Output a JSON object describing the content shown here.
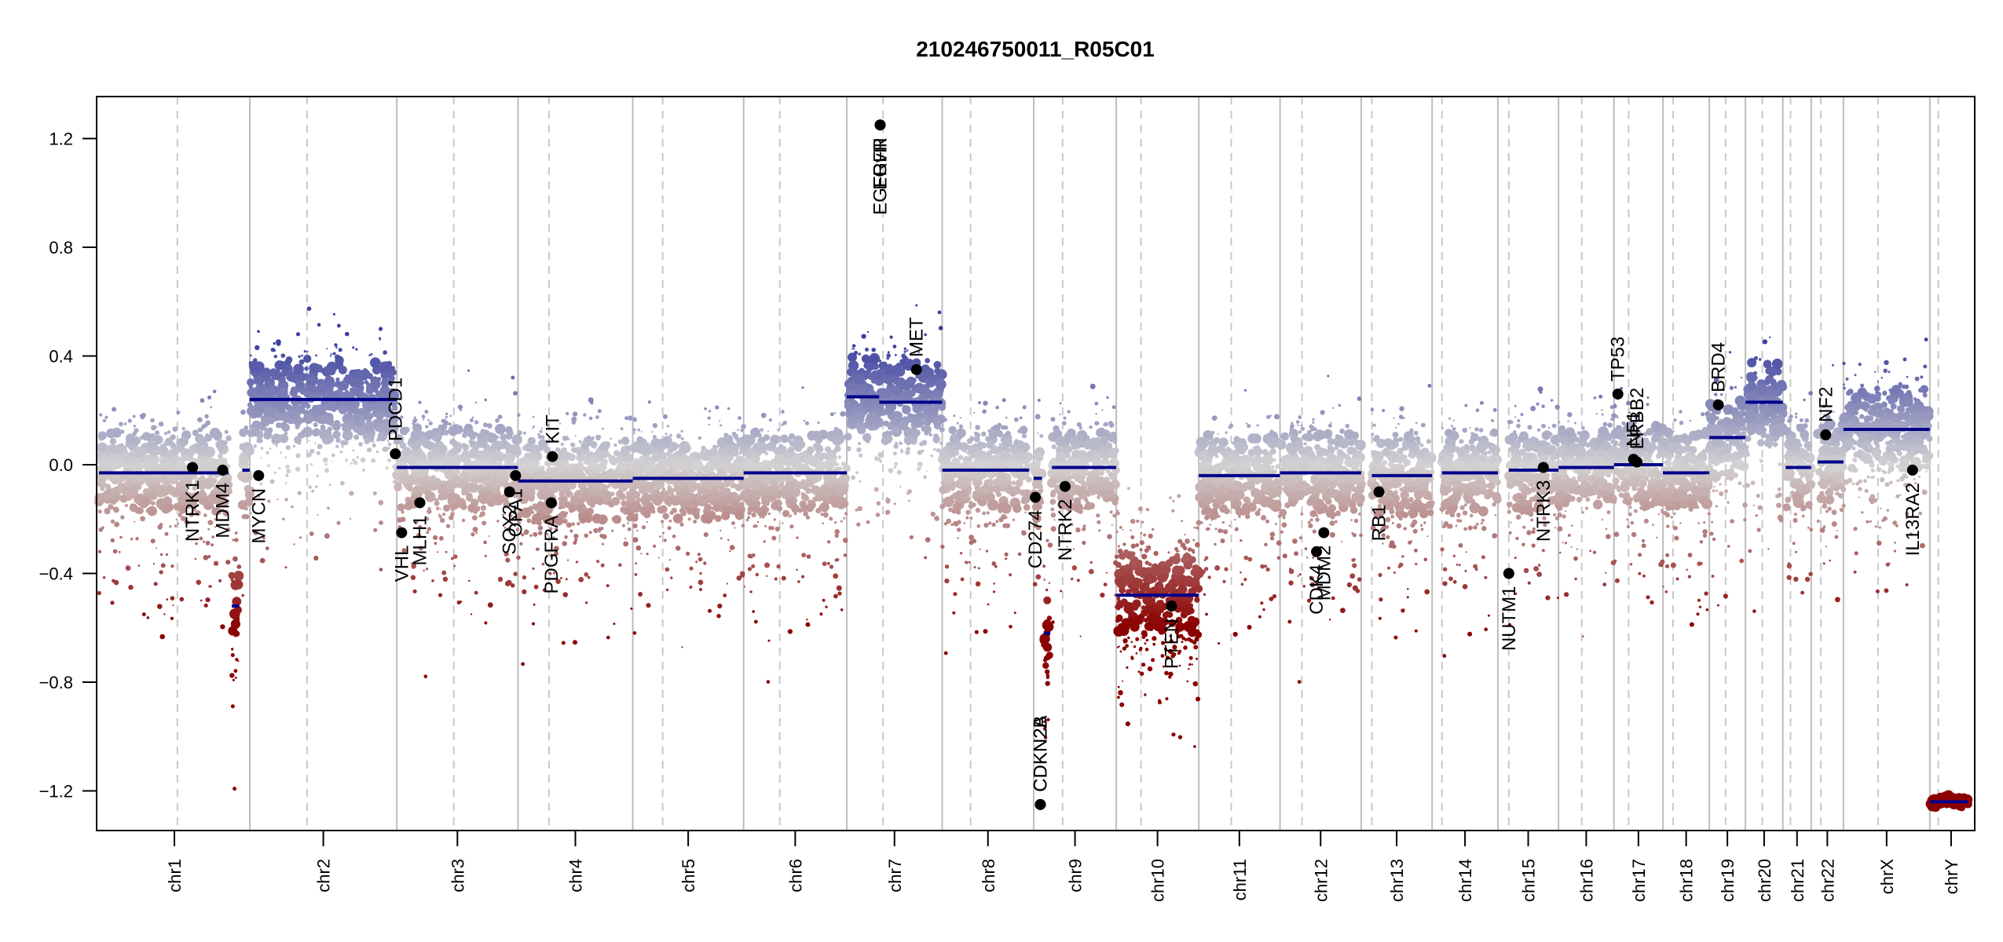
{
  "chart_data": {
    "type": "scatter",
    "title": "210246750011_R05C01",
    "xlabel": "",
    "ylabel": "",
    "ylim": [
      -1.35,
      1.3
    ],
    "yticks": [
      1.2,
      0.8,
      0.4,
      0.0,
      -0.4,
      -0.8,
      -1.2
    ],
    "ytick_labels": [
      "1.2",
      "0.8",
      "0.4",
      "0.0",
      "−0.4",
      "−0.8",
      "−1.2"
    ],
    "grid": false,
    "colors": {
      "gain": "#3a3fa0",
      "neutral": "#d3d3d3",
      "loss": "#8b0000",
      "segment": "#00008b",
      "gene_point": "#000000",
      "chrom_line": "#bdbdbd"
    },
    "chromosomes": [
      {
        "name": "chr1",
        "rel_len": 117,
        "centromere": 0.52,
        "segments": [
          {
            "from": 0,
            "to": 0.86,
            "value": -0.03
          },
          {
            "from": 0.88,
            "to": 0.93,
            "value": -0.52
          },
          {
            "from": 0.95,
            "to": 1.0,
            "value": -0.02
          }
        ]
      },
      {
        "name": "chr2",
        "rel_len": 114,
        "centromere": 0.39,
        "segments": [
          {
            "from": 0,
            "to": 1,
            "value": 0.24
          }
        ]
      },
      {
        "name": "chr3",
        "rel_len": 94,
        "centromere": 0.47,
        "segments": [
          {
            "from": 0,
            "to": 1,
            "value": -0.01
          }
        ]
      },
      {
        "name": "chr4",
        "rel_len": 89,
        "centromere": 0.27,
        "segments": [
          {
            "from": 0,
            "to": 1,
            "value": -0.06
          }
        ]
      },
      {
        "name": "chr5",
        "rel_len": 86,
        "centromere": 0.27,
        "segments": [
          {
            "from": 0,
            "to": 1,
            "value": -0.05
          }
        ]
      },
      {
        "name": "chr6",
        "rel_len": 80,
        "centromere": 0.35,
        "segments": [
          {
            "from": 0,
            "to": 1,
            "value": -0.03
          }
        ]
      },
      {
        "name": "chr7",
        "rel_len": 74,
        "centromere": 0.38,
        "segments": [
          {
            "from": 0,
            "to": 0.34,
            "value": 0.25
          },
          {
            "from": 0.34,
            "to": 1,
            "value": 0.23
          }
        ]
      },
      {
        "name": "chr8",
        "rel_len": 71,
        "centromere": 0.31,
        "segments": [
          {
            "from": 0,
            "to": 0.95,
            "value": -0.02
          }
        ]
      },
      {
        "name": "chr9",
        "rel_len": 64,
        "centromere": 0.35,
        "segments": [
          {
            "from": 0,
            "to": 0.1,
            "value": -0.05
          },
          {
            "from": 0.12,
            "to": 0.2,
            "value": -0.62
          },
          {
            "from": 0.22,
            "to": 1,
            "value": -0.01
          }
        ]
      },
      {
        "name": "chr10",
        "rel_len": 64,
        "centromere": 0.3,
        "segments": [
          {
            "from": 0,
            "to": 1,
            "value": -0.48
          }
        ]
      },
      {
        "name": "chr11",
        "rel_len": 63,
        "centromere": 0.4,
        "segments": [
          {
            "from": 0,
            "to": 1,
            "value": -0.04
          }
        ]
      },
      {
        "name": "chr12",
        "rel_len": 63,
        "centromere": 0.27,
        "segments": [
          {
            "from": 0,
            "to": 1,
            "value": -0.03
          }
        ]
      },
      {
        "name": "chr13",
        "rel_len": 55,
        "centromere": 0.15,
        "segments": [
          {
            "from": 0.15,
            "to": 1,
            "value": -0.04
          }
        ]
      },
      {
        "name": "chr14",
        "rel_len": 51,
        "centromere": 0.15,
        "segments": [
          {
            "from": 0.15,
            "to": 1,
            "value": -0.03
          }
        ]
      },
      {
        "name": "chr15",
        "rel_len": 47,
        "centromere": 0.18,
        "segments": [
          {
            "from": 0.18,
            "to": 1,
            "value": -0.02
          }
        ]
      },
      {
        "name": "chr16",
        "rel_len": 43,
        "centromere": 0.42,
        "segments": [
          {
            "from": 0,
            "to": 1,
            "value": -0.01
          }
        ]
      },
      {
        "name": "chr17",
        "rel_len": 38,
        "centromere": 0.3,
        "segments": [
          {
            "from": 0,
            "to": 1,
            "value": 0.0
          }
        ]
      },
      {
        "name": "chr18",
        "rel_len": 36,
        "centromere": 0.22,
        "segments": [
          {
            "from": 0,
            "to": 1,
            "value": -0.03
          }
        ]
      },
      {
        "name": "chr19",
        "rel_len": 28,
        "centromere": 0.45,
        "segments": [
          {
            "from": 0,
            "to": 1,
            "value": 0.1
          }
        ]
      },
      {
        "name": "chr20",
        "rel_len": 29,
        "centromere": 0.45,
        "segments": [
          {
            "from": 0,
            "to": 1,
            "value": 0.23
          }
        ]
      },
      {
        "name": "chr21",
        "rel_len": 22,
        "centromere": 0.27,
        "segments": [
          {
            "from": 0.1,
            "to": 1,
            "value": -0.01
          }
        ]
      },
      {
        "name": "chr22",
        "rel_len": 25,
        "centromere": 0.3,
        "segments": [
          {
            "from": 0.2,
            "to": 1,
            "value": 0.01
          }
        ]
      },
      {
        "name": "chrX",
        "rel_len": 67,
        "centromere": 0.4,
        "segments": [
          {
            "from": 0,
            "to": 1,
            "value": 0.13
          }
        ]
      },
      {
        "name": "chrY",
        "rel_len": 33,
        "centromere": 0.2,
        "segments": [
          {
            "from": 0,
            "to": 0.9,
            "value": -1.24
          }
        ]
      }
    ],
    "genes": [
      {
        "name": "NTRK1",
        "chrom": "chr1",
        "pos": 0.62,
        "value": -0.01,
        "label_side": "below"
      },
      {
        "name": "MDM4",
        "chrom": "chr1",
        "pos": 0.82,
        "value": -0.02,
        "label_side": "below"
      },
      {
        "name": "MYCN",
        "chrom": "chr2",
        "pos": 0.06,
        "value": -0.04,
        "label_side": "below"
      },
      {
        "name": "PDCD1",
        "chrom": "chr2",
        "pos": 0.99,
        "value": 0.04,
        "label_side": "above"
      },
      {
        "name": "VHL",
        "chrom": "chr3",
        "pos": 0.04,
        "value": -0.25,
        "label_side": "below"
      },
      {
        "name": "MLH1",
        "chrom": "chr3",
        "pos": 0.19,
        "value": -0.14,
        "label_side": "below"
      },
      {
        "name": "SOX2",
        "chrom": "chr3",
        "pos": 0.93,
        "value": -0.1,
        "label_side": "below"
      },
      {
        "name": "OPA1",
        "chrom": "chr3",
        "pos": 0.98,
        "value": -0.04,
        "label_side": "below"
      },
      {
        "name": "KIT",
        "chrom": "chr4",
        "pos": 0.3,
        "value": 0.03,
        "label_side": "above"
      },
      {
        "name": "PDGFRA",
        "chrom": "chr4",
        "pos": 0.29,
        "value": -0.14,
        "label_side": "below"
      },
      {
        "name": "EGFR",
        "chrom": "chr7",
        "pos": 0.35,
        "value": 1.25,
        "label_side": "below"
      },
      {
        "name": "EGFRvIII",
        "chrom": "chr7",
        "pos": 0.35,
        "value": 1.25,
        "label_side": "below"
      },
      {
        "name": "MET",
        "chrom": "chr7",
        "pos": 0.73,
        "value": 0.35,
        "label_side": "above"
      },
      {
        "name": "CD274",
        "chrom": "chr9",
        "pos": 0.02,
        "value": -0.12,
        "label_side": "below"
      },
      {
        "name": "CDKN2A",
        "chrom": "chr9",
        "pos": 0.08,
        "value": -1.25,
        "label_side": "above"
      },
      {
        "name": "CDKN2B",
        "chrom": "chr9",
        "pos": 0.08,
        "value": -1.25,
        "label_side": "above"
      },
      {
        "name": "NTRK2",
        "chrom": "chr9",
        "pos": 0.38,
        "value": -0.08,
        "label_side": "below"
      },
      {
        "name": "PTEN",
        "chrom": "chr10",
        "pos": 0.67,
        "value": -0.52,
        "label_side": "below"
      },
      {
        "name": "CDK4",
        "chrom": "chr12",
        "pos": 0.45,
        "value": -0.32,
        "label_side": "below"
      },
      {
        "name": "MDM2",
        "chrom": "chr12",
        "pos": 0.54,
        "value": -0.25,
        "label_side": "below"
      },
      {
        "name": "RB1",
        "chrom": "chr13",
        "pos": 0.25,
        "value": -0.1,
        "label_side": "below"
      },
      {
        "name": "NUTM1",
        "chrom": "chr15",
        "pos": 0.18,
        "value": -0.4,
        "label_side": "below"
      },
      {
        "name": "NTRK3",
        "chrom": "chr15",
        "pos": 0.75,
        "value": -0.01,
        "label_side": "below"
      },
      {
        "name": "TP53",
        "chrom": "chr17",
        "pos": 0.08,
        "value": 0.26,
        "label_side": "above"
      },
      {
        "name": "NF1",
        "chrom": "chr17",
        "pos": 0.4,
        "value": 0.02,
        "label_side": "above"
      },
      {
        "name": "ERBB2",
        "chrom": "chr17",
        "pos": 0.47,
        "value": 0.01,
        "label_side": "above"
      },
      {
        "name": "BRD4",
        "chrom": "chr19",
        "pos": 0.25,
        "value": 0.22,
        "label_side": "above"
      },
      {
        "name": "NF2",
        "chrom": "chr22",
        "pos": 0.45,
        "value": 0.11,
        "label_side": "above"
      },
      {
        "name": "IL13RA2",
        "chrom": "chrX",
        "pos": 0.8,
        "value": -0.02,
        "label_side": "below"
      }
    ]
  }
}
